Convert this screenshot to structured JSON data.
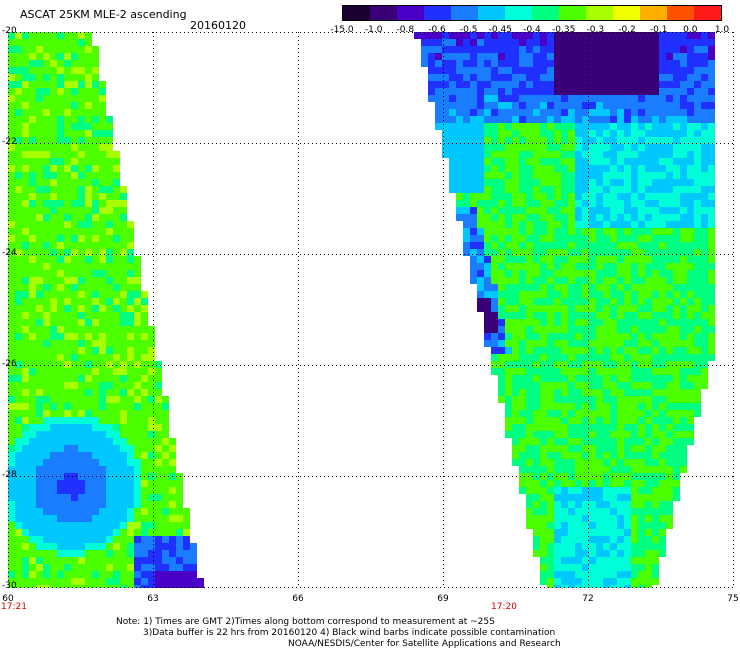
{
  "header": {
    "title": "ASCAT 25KM MLE-2 ascending",
    "date": "20160120"
  },
  "colorbar": {
    "colors": [
      "#1a0030",
      "#3a0078",
      "#4b00c8",
      "#2030ff",
      "#1a7dff",
      "#00c8ff",
      "#00ffd8",
      "#00ff80",
      "#4cff00",
      "#a8ff00",
      "#f0ff00",
      "#ffb000",
      "#ff5000",
      "#ff1a1a"
    ],
    "labels": [
      "-15.0",
      "-1.0",
      "-0.8",
      "-0.6",
      "-0.5",
      "-0.45",
      "-0.4",
      "-0.35",
      "-0.3",
      "-0.2",
      "-0.1",
      "0.0",
      "1.0"
    ]
  },
  "axes": {
    "y_labels": [
      "-20",
      "-22",
      "-24",
      "-26",
      "-28",
      "-30"
    ],
    "x_labels": [
      "60",
      "63",
      "66",
      "69",
      "72",
      "75"
    ]
  },
  "swaths": {
    "left_time": "17:21",
    "right_time": "17:20"
  },
  "notes": {
    "line1": "Note: 1) Times are GMT 2)Times along bottom correspond to measurement at ~25S",
    "line2": "3)Data buffer is 22 hrs from 20160120 4) Black wind barbs indicate possible contamination",
    "line3": "NOAA/NESDIS/Center for Satellite Applications and Research"
  }
}
